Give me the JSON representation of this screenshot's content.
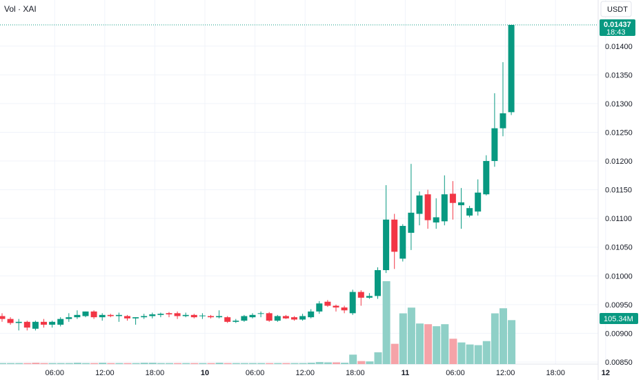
{
  "chart_data": {
    "type": "candlestick",
    "legend": "Vol · XAI",
    "currency": "USDT",
    "colors": {
      "up": "#089981",
      "down": "#f23645",
      "vol_up": "#8fd0c7",
      "vol_down": "#f5a3a8",
      "grid": "#f0f3fa",
      "text": "#131722",
      "price_line": "#089981"
    },
    "ylim": [
      0.00845,
      0.0146
    ],
    "y_ticks": [
      "0.01400",
      "0.01350",
      "0.01300",
      "0.01250",
      "0.01200",
      "0.01150",
      "0.01100",
      "0.01050",
      "0.01000",
      "0.00950",
      "0.00900",
      "0.00850"
    ],
    "x_ticks": [
      "06:00",
      "12:00",
      "18:00",
      "10",
      "06:00",
      "12:00",
      "18:00",
      "11",
      "06:00",
      "12:00",
      "18:00",
      "12"
    ],
    "bar_hours": 1,
    "start_time": "2024-xx-09 00:00",
    "last_price": {
      "value": "0.01437",
      "countdown": "18:43"
    },
    "last_volume": "105.34M",
    "candles": [
      [
        0.0093,
        0.00935,
        0.0092,
        0.00925
      ],
      [
        0.00925,
        0.00928,
        0.00915,
        0.00918
      ],
      [
        0.00918,
        0.00925,
        0.00905,
        0.0092
      ],
      [
        0.0092,
        0.00922,
        0.00905,
        0.0091
      ],
      [
        0.00908,
        0.00922,
        0.00905,
        0.0092
      ],
      [
        0.0092,
        0.00925,
        0.0091,
        0.00915
      ],
      [
        0.00915,
        0.00922,
        0.0091,
        0.0092
      ],
      [
        0.00915,
        0.00928,
        0.00912,
        0.00925
      ],
      [
        0.00925,
        0.00935,
        0.0092,
        0.00928
      ],
      [
        0.00928,
        0.0094,
        0.00925,
        0.00932
      ],
      [
        0.0093,
        0.00938,
        0.00928,
        0.00938
      ],
      [
        0.00938,
        0.0094,
        0.00925,
        0.00928
      ],
      [
        0.00928,
        0.00935,
        0.00922,
        0.00932
      ],
      [
        0.00932,
        0.00934,
        0.00928,
        0.0093
      ],
      [
        0.0093,
        0.00936,
        0.0092,
        0.00932
      ],
      [
        0.0093,
        0.00932,
        0.00922,
        0.00926
      ],
      [
        0.00926,
        0.00928,
        0.00915,
        0.00928
      ],
      [
        0.00928,
        0.00934,
        0.00925,
        0.0093
      ],
      [
        0.0093,
        0.00936,
        0.00926,
        0.00933
      ],
      [
        0.00932,
        0.00936,
        0.00928,
        0.00934
      ],
      [
        0.00935,
        0.00937,
        0.00928,
        0.00933
      ],
      [
        0.00935,
        0.00938,
        0.00925,
        0.0093
      ],
      [
        0.0093,
        0.00936,
        0.00928,
        0.00932
      ],
      [
        0.00932,
        0.00934,
        0.00926,
        0.00928
      ],
      [
        0.0093,
        0.00935,
        0.00925,
        0.00931
      ],
      [
        0.0093,
        0.00932,
        0.00926,
        0.00928
      ],
      [
        0.00928,
        0.0094,
        0.00926,
        0.0093
      ],
      [
        0.00928,
        0.0093,
        0.00918,
        0.0092
      ],
      [
        0.0092,
        0.00925,
        0.00918,
        0.00922
      ],
      [
        0.00922,
        0.00932,
        0.0092,
        0.0093
      ],
      [
        0.00928,
        0.00935,
        0.00926,
        0.00932
      ],
      [
        0.00935,
        0.00938,
        0.00928,
        0.00935
      ],
      [
        0.00935,
        0.00937,
        0.0092,
        0.00922
      ],
      [
        0.00922,
        0.00932,
        0.0092,
        0.0093
      ],
      [
        0.0093,
        0.00932,
        0.00925,
        0.00926
      ],
      [
        0.00928,
        0.0093,
        0.00922,
        0.00924
      ],
      [
        0.00924,
        0.00934,
        0.00922,
        0.0093
      ],
      [
        0.00928,
        0.00942,
        0.00926,
        0.00938
      ],
      [
        0.00938,
        0.00956,
        0.00934,
        0.00952
      ],
      [
        0.00955,
        0.00958,
        0.00946,
        0.00948
      ],
      [
        0.00948,
        0.0095,
        0.00938,
        0.00945
      ],
      [
        0.00945,
        0.00948,
        0.00935,
        0.0094
      ],
      [
        0.00935,
        0.00976,
        0.00932,
        0.00972
      ],
      [
        0.00972,
        0.00975,
        0.00948,
        0.00962
      ],
      [
        0.00962,
        0.0097,
        0.0096,
        0.00965
      ],
      [
        0.00965,
        0.01015,
        0.0096,
        0.0101
      ],
      [
        0.0101,
        0.01158,
        0.01005,
        0.01098
      ],
      [
        0.01098,
        0.01108,
        0.01012,
        0.01042
      ],
      [
        0.0103,
        0.0109,
        0.01025,
        0.01087
      ],
      [
        0.01075,
        0.01195,
        0.01045,
        0.0111
      ],
      [
        0.01108,
        0.01147,
        0.01088,
        0.0114
      ],
      [
        0.01142,
        0.0115,
        0.01082,
        0.01097
      ],
      [
        0.01093,
        0.01135,
        0.01082,
        0.01102
      ],
      [
        0.01095,
        0.01175,
        0.01088,
        0.01142
      ],
      [
        0.01143,
        0.01165,
        0.01098,
        0.01127
      ],
      [
        0.01123,
        0.01153,
        0.01082,
        0.01128
      ],
      [
        0.01105,
        0.01122,
        0.01102,
        0.01118
      ],
      [
        0.01112,
        0.01168,
        0.01105,
        0.01145
      ],
      [
        0.01142,
        0.0121,
        0.0114,
        0.012
      ],
      [
        0.012,
        0.01318,
        0.0119,
        0.01257
      ],
      [
        0.01257,
        0.01372,
        0.01243,
        0.01283
      ],
      [
        0.01285,
        0.01437,
        0.0128,
        0.01437
      ]
    ],
    "volumes": [
      [
        3,
        1
      ],
      [
        3,
        1
      ],
      [
        3,
        1
      ],
      [
        3,
        0
      ],
      [
        4,
        0
      ],
      [
        3,
        0
      ],
      [
        3,
        1
      ],
      [
        3,
        1
      ],
      [
        3,
        1
      ],
      [
        4,
        1
      ],
      [
        3,
        1
      ],
      [
        3,
        0
      ],
      [
        4,
        1
      ],
      [
        3,
        0
      ],
      [
        3,
        1
      ],
      [
        3,
        0
      ],
      [
        3,
        1
      ],
      [
        4,
        1
      ],
      [
        4,
        1
      ],
      [
        3,
        1
      ],
      [
        3,
        1
      ],
      [
        3,
        0
      ],
      [
        3,
        1
      ],
      [
        3,
        0
      ],
      [
        3,
        1
      ],
      [
        3,
        0
      ],
      [
        4,
        1
      ],
      [
        3,
        0
      ],
      [
        3,
        1
      ],
      [
        3,
        1
      ],
      [
        3,
        1
      ],
      [
        3,
        1
      ],
      [
        3,
        0
      ],
      [
        3,
        1
      ],
      [
        3,
        0
      ],
      [
        3,
        1
      ],
      [
        3,
        1
      ],
      [
        4,
        1
      ],
      [
        6,
        1
      ],
      [
        5,
        1
      ],
      [
        5,
        0
      ],
      [
        4,
        1
      ],
      [
        28,
        1
      ],
      [
        9,
        0
      ],
      [
        8,
        1
      ],
      [
        35,
        1
      ],
      [
        245,
        1
      ],
      [
        60,
        0
      ],
      [
        150,
        1
      ],
      [
        167,
        1
      ],
      [
        120,
        1
      ],
      [
        118,
        0
      ],
      [
        112,
        1
      ],
      [
        118,
        1
      ],
      [
        75,
        0
      ],
      [
        64,
        1
      ],
      [
        58,
        1
      ],
      [
        56,
        1
      ],
      [
        68,
        1
      ],
      [
        150,
        1
      ],
      [
        165,
        1
      ],
      [
        130,
        1
      ]
    ]
  }
}
